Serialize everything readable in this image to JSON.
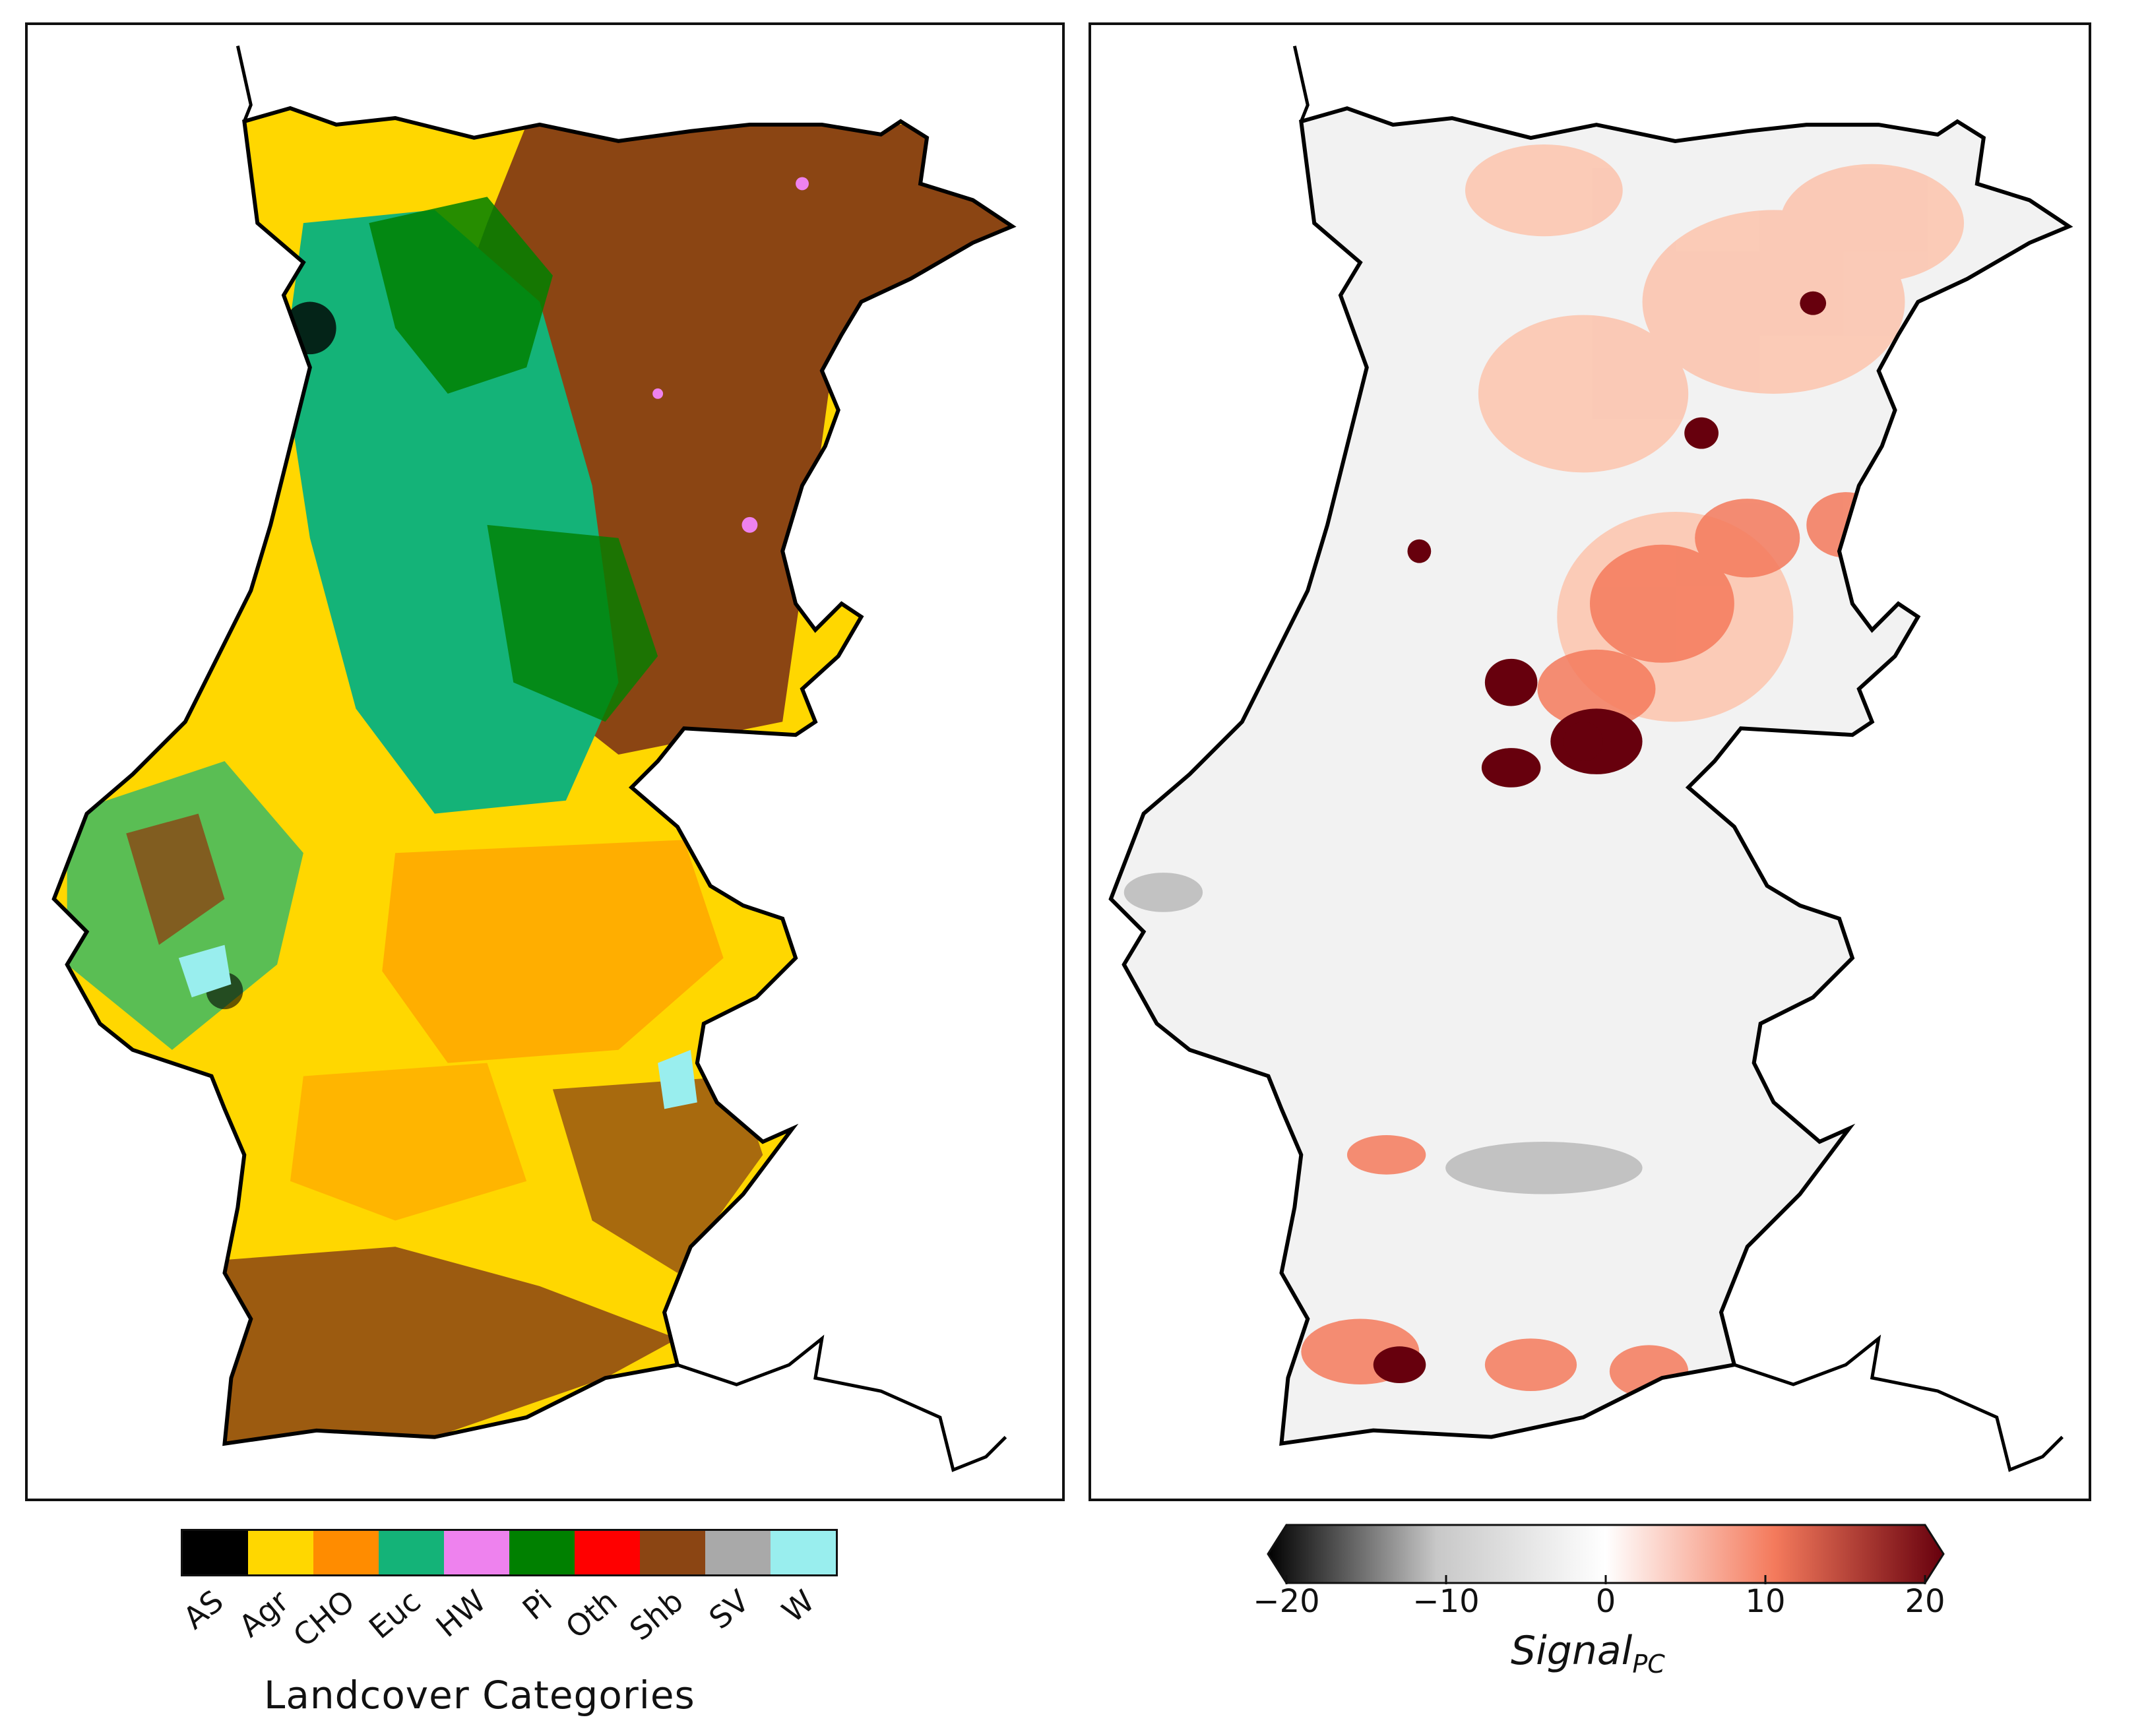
{
  "left_panel": {
    "colorbar": {
      "categories": [
        {
          "label": "AS",
          "color": "#000000"
        },
        {
          "label": "Agr",
          "color": "#ffd700"
        },
        {
          "label": "CHO",
          "color": "#ff8c00"
        },
        {
          "label": "Euc",
          "color": "#14b378"
        },
        {
          "label": "HW",
          "color": "#ee82ee"
        },
        {
          "label": "Pi",
          "color": "#008000"
        },
        {
          "label": "Oth",
          "color": "#ff0000"
        },
        {
          "label": "Shb",
          "color": "#8b4513"
        },
        {
          "label": "SV",
          "color": "#a9a9a9"
        },
        {
          "label": "W",
          "color": "#99eeee"
        }
      ],
      "title": "Landcover Categories"
    }
  },
  "right_panel": {
    "colorbar": {
      "ticks": [
        "−20",
        "−10",
        "0",
        "10",
        "20"
      ],
      "range": [
        -20,
        20
      ],
      "colormap": [
        "#000000",
        "#c8c8c8",
        "#ffffff",
        "#f47a5c",
        "#67000d"
      ],
      "title_main": "Signal",
      "title_sub": "PC"
    }
  }
}
